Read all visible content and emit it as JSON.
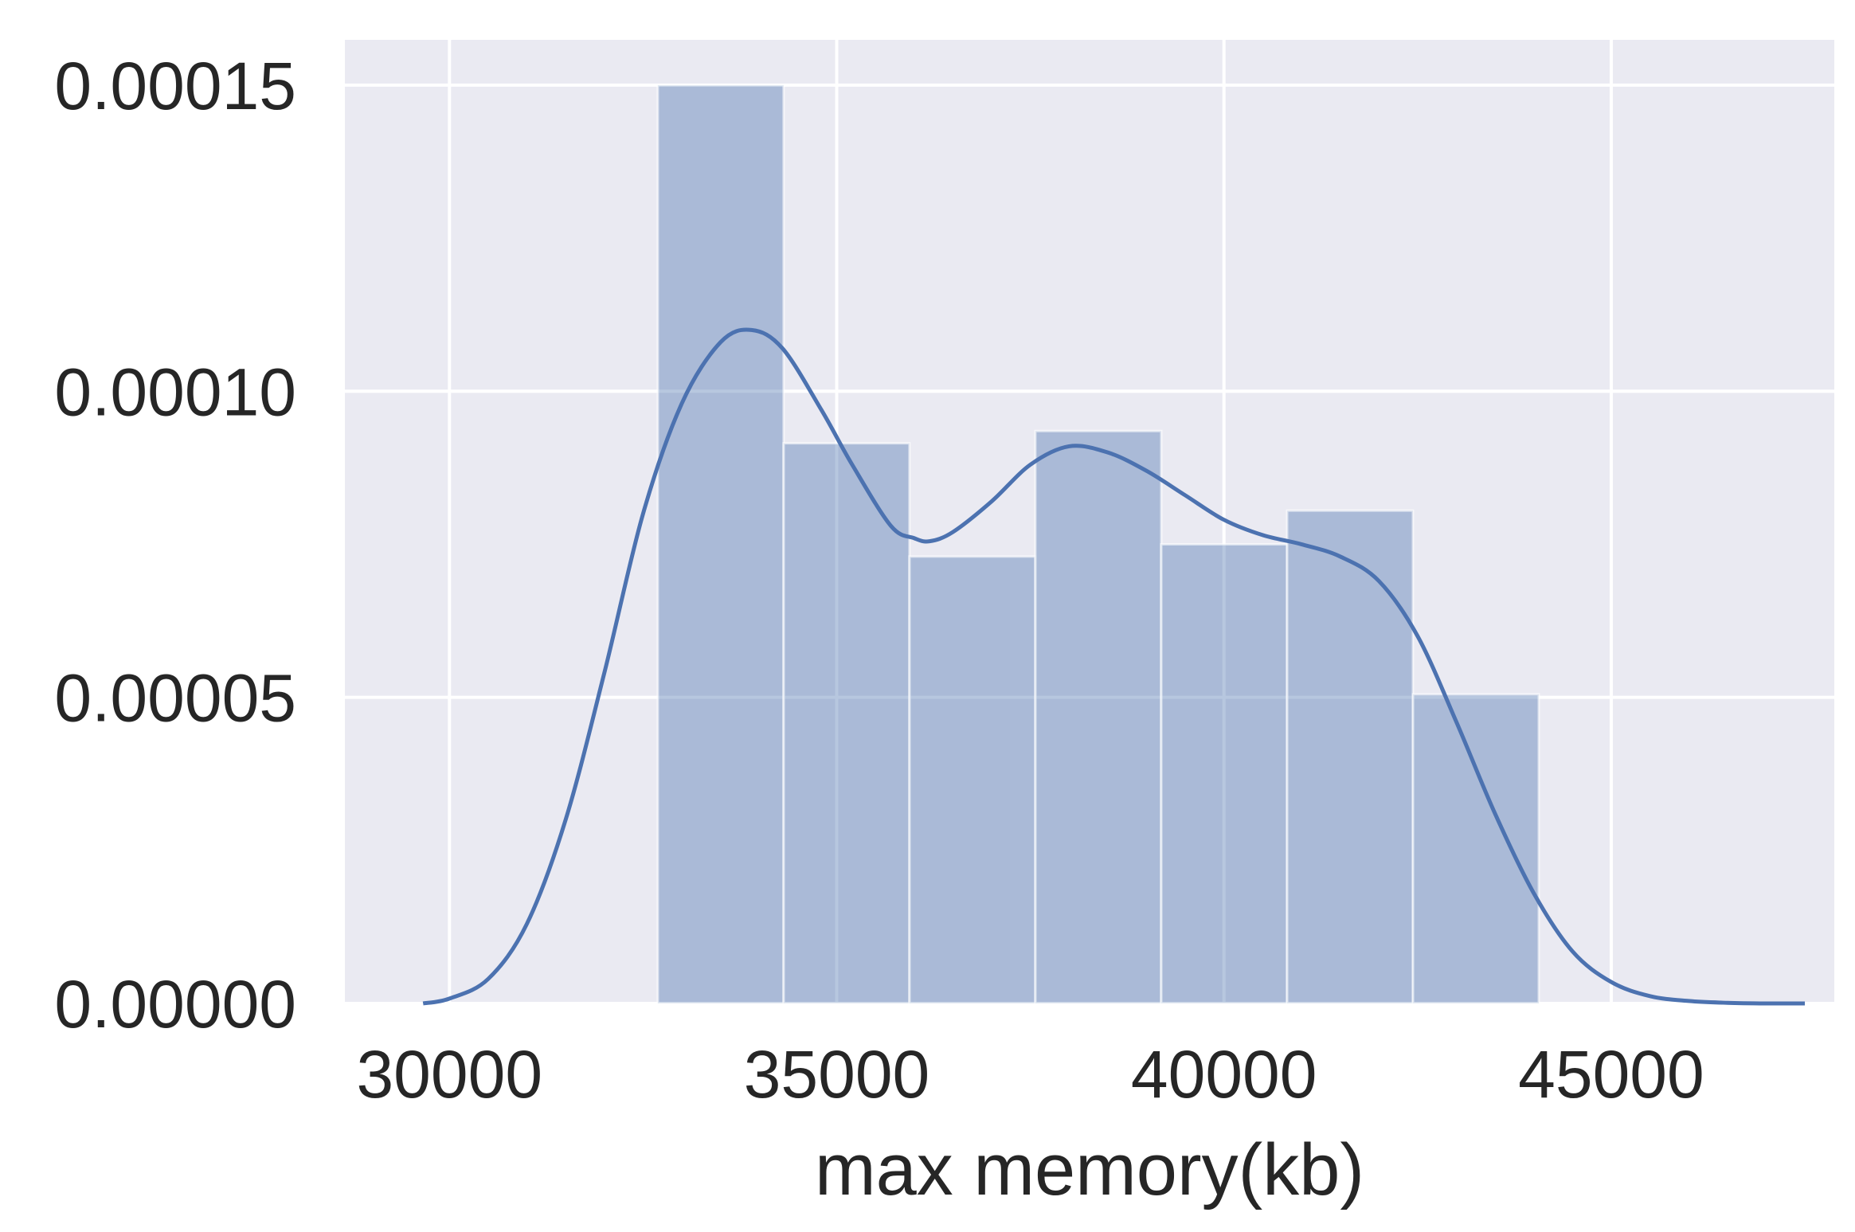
{
  "chart_data": {
    "type": "bar",
    "subtype": "histogram-with-kde",
    "title": "",
    "xlabel": "max memory(kb)",
    "ylabel": "",
    "xlim": [
      28650,
      47880
    ],
    "ylim": [
      0,
      0.0001574
    ],
    "x_ticks": [
      30000,
      35000,
      40000,
      45000
    ],
    "x_tick_labels": [
      "30000",
      "35000",
      "40000",
      "45000"
    ],
    "y_ticks": [
      0,
      5e-05,
      0.0001,
      0.00015
    ],
    "y_tick_labels": [
      "0.00000",
      "0.00005",
      "0.00010",
      "0.00015"
    ],
    "grid": true,
    "background": "#eaeaf2",
    "grid_color": "#ffffff",
    "bar_color": "#4c72b0",
    "bar_alpha": 0.4,
    "line_color": "#4c72b0",
    "bins": [
      {
        "x0": 32690,
        "x1": 34315,
        "value": 0.00015
      },
      {
        "x0": 34315,
        "x1": 35940,
        "value": 9.15e-05
      },
      {
        "x0": 35940,
        "x1": 37565,
        "value": 7.3e-05
      },
      {
        "x0": 37565,
        "x1": 39190,
        "value": 9.35e-05
      },
      {
        "x0": 39190,
        "x1": 40815,
        "value": 7.5e-05
      },
      {
        "x0": 40815,
        "x1": 42440,
        "value": 8.05e-05
      },
      {
        "x0": 42440,
        "x1": 44065,
        "value": 5.05e-05
      }
    ],
    "kde": {
      "x": [
        29660,
        30000,
        30500,
        31000,
        31500,
        32000,
        32500,
        33000,
        33500,
        33900,
        34300,
        34800,
        35200,
        35700,
        36000,
        36200,
        36500,
        37000,
        37500,
        38000,
        38500,
        39000,
        39500,
        40000,
        40500,
        41000,
        41500,
        42000,
        42500,
        43000,
        43500,
        44000,
        44500,
        45000,
        45500,
        46000,
        46500,
        47000,
        47500
      ],
      "y": [
        0.0,
        8e-07,
        4e-06,
        1.3e-05,
        3e-05,
        5.4e-05,
        8e-05,
        9.8e-05,
        0.000108,
        0.00011,
        0.000107,
        9.7e-05,
        8.8e-05,
        7.8e-05,
        7.6e-05,
        7.55e-05,
        7.7e-05,
        8.2e-05,
        8.8e-05,
        9.1e-05,
        9e-05,
        8.7e-05,
        8.3e-05,
        7.9e-05,
        7.65e-05,
        7.5e-05,
        7.3e-05,
        6.9e-05,
        6e-05,
        4.6e-05,
        3.1e-05,
        1.8e-05,
        8.5e-06,
        3.5e-06,
        1.2e-06,
        4e-07,
        1e-07,
        0.0,
        0.0
      ]
    }
  }
}
